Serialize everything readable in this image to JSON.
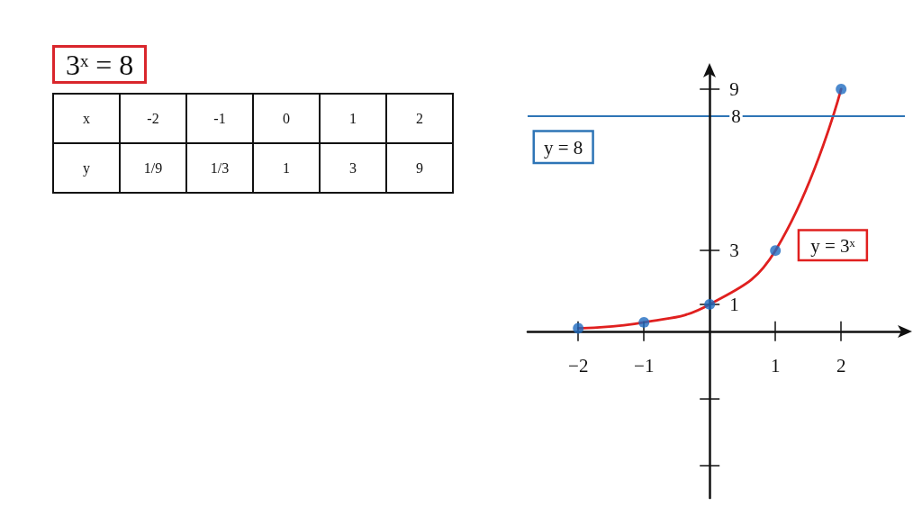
{
  "chart_data": {
    "type": "line",
    "title": "3ˣ = 8",
    "annotations": [
      "x",
      "-2",
      "-1",
      "0",
      "1",
      "2",
      "y",
      "1/9",
      "1/3",
      "1",
      "3",
      "9"
    ],
    "series": [
      {
        "name": "y = 3ˣ",
        "color": "#e0201f",
        "marker": "none",
        "x": [
          -2,
          -1,
          0,
          1,
          2
        ],
        "values": [
          0.11,
          0.33,
          1,
          3,
          9
        ]
      },
      {
        "type": "scatter",
        "color": "#1f6cc0",
        "marker": "circle",
        "x": [
          -2,
          -1,
          0,
          1,
          2
        ],
        "values": [
          0.11,
          0.33,
          1,
          3,
          9
        ]
      }
    ],
    "xlim": [
      -2.77,
      2.97
    ],
    "xticks": [
      {
        "value": -2,
        "label": "−2"
      },
      {
        "value": -1,
        "label": "−1"
      },
      1,
      2
    ],
    "ylim": [
      -6.2,
      9.7
    ],
    "yticks": [
      {
        "value": -5,
        "label": null
      },
      {
        "value": -2.5,
        "label": null
      },
      1,
      3,
      8,
      9
    ],
    "ref_lines": [
      {
        "axis": "y",
        "value": 8,
        "label": "y = 8",
        "color": "#2e75b6"
      }
    ]
  }
}
